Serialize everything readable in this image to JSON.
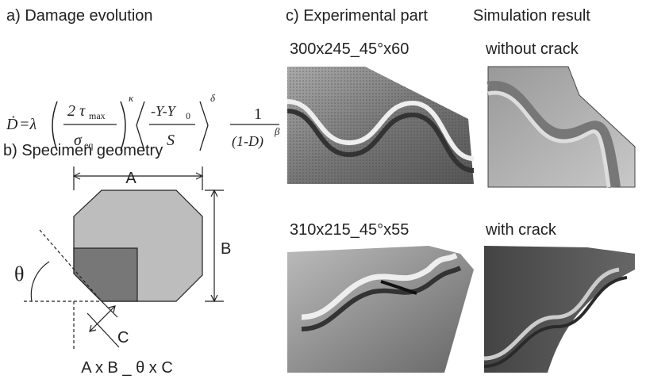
{
  "panel_a": {
    "title": "a) Damage evolution",
    "formula": {
      "lhs": "Ḋ",
      "eq": "=λ",
      "num1": "2 τ",
      "num1_sub": "max",
      "den1": "σ",
      "den1_sub": "eq",
      "exp1": "κ",
      "num2": "-Y-Y",
      "num2_sub": "0",
      "den2": "S",
      "exp2": "δ",
      "num3": "1",
      "den3": "(1-D)",
      "exp3": "β"
    }
  },
  "panel_b": {
    "title": "b) Specimen geometry",
    "labels": {
      "a": "A",
      "b": "B",
      "theta": "θ",
      "c": "C"
    },
    "caption": "A x B _ θ x C"
  },
  "panel_c": {
    "title": "c) Experimental part",
    "sim_title": "Simulation result",
    "cases": [
      {
        "label": "300x245_45°x60",
        "sim_label": "without crack"
      },
      {
        "label": "310x215_45°x55",
        "sim_label": "with crack"
      }
    ]
  }
}
